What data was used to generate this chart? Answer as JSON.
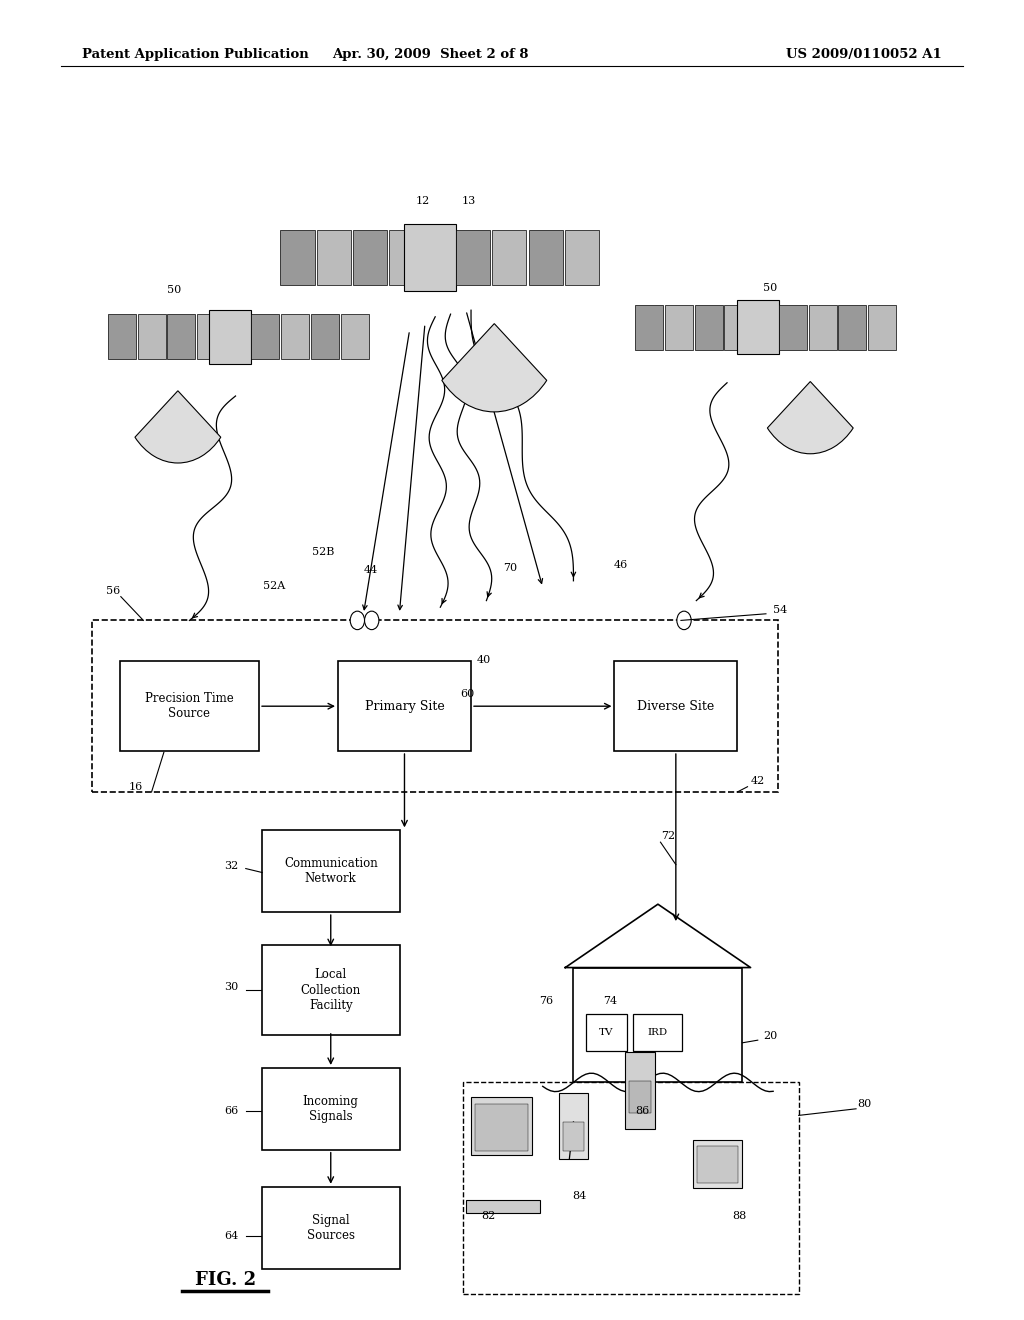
{
  "bg_color": "#ffffff",
  "header_left": "Patent Application Publication",
  "header_mid": "Apr. 30, 2009  Sheet 2 of 8",
  "header_right": "US 2009/0110052 A1",
  "fig_label": "FIG. 2"
}
